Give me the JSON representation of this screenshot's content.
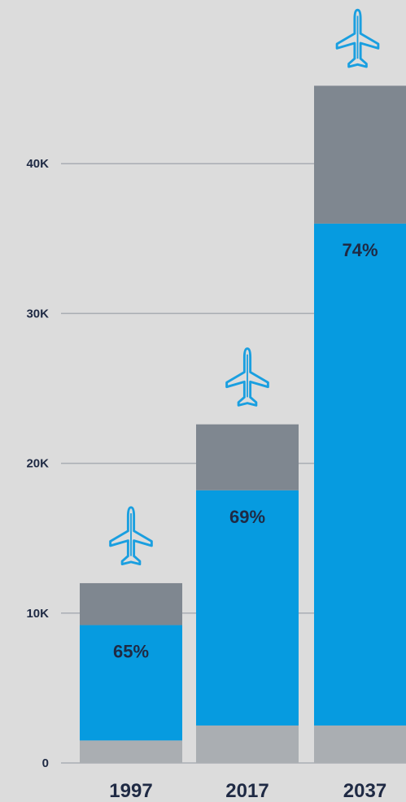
{
  "chart_data": {
    "type": "bar",
    "stacked": true,
    "categories": [
      "1997",
      "2017",
      "2037"
    ],
    "series": [
      {
        "values": [
          1500,
          2500,
          2500
        ]
      },
      {
        "values": [
          7700,
          15700,
          33500
        ]
      },
      {
        "values": [
          2800,
          4400,
          9200
        ]
      }
    ],
    "bar_labels": [
      "65%",
      "69%",
      "74%"
    ],
    "y_ticks": [
      0,
      10000,
      20000,
      30000,
      40000
    ],
    "y_tick_labels": [
      "0",
      "10K",
      "20K",
      "30K",
      "40K"
    ],
    "ylim": [
      0,
      50000
    ],
    "grid": true,
    "icon_above_bars": "airplane-icon",
    "colors": {
      "background": "#dcdcdc",
      "gridline": "#a9adb3",
      "bottom_segment": "#aaaeb2",
      "middle_segment": "#069be0",
      "top_segment": "#7f8790",
      "airplane": "#1a9fe0",
      "text": "#1f2a44"
    }
  }
}
